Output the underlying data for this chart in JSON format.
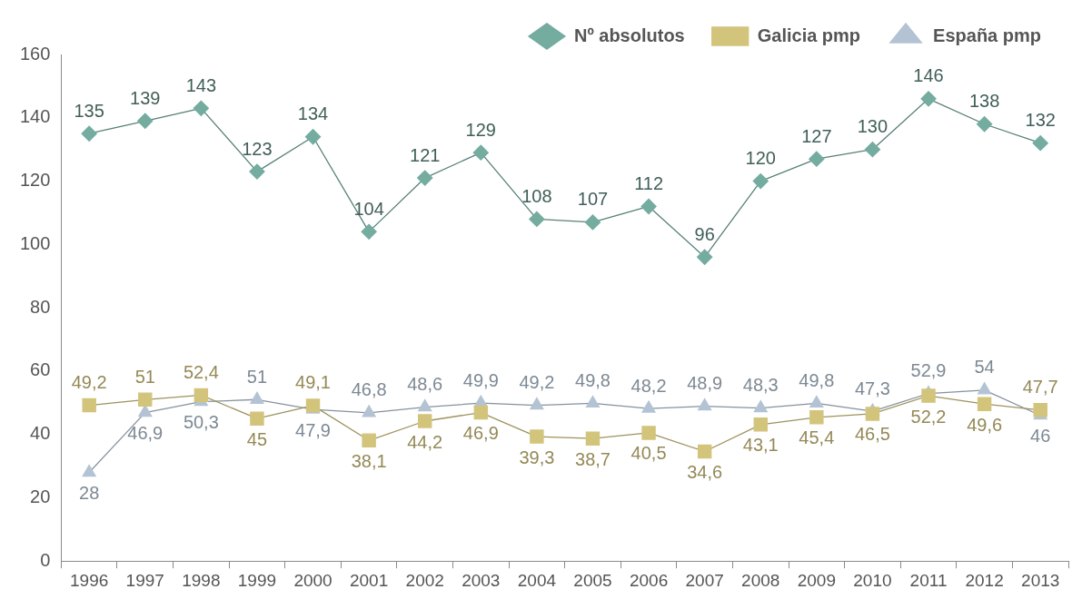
{
  "chart_data": {
    "type": "line",
    "categories": [
      "1996",
      "1997",
      "1998",
      "1999",
      "2000",
      "2001",
      "2002",
      "2003",
      "2004",
      "2005",
      "2006",
      "2007",
      "2008",
      "2009",
      "2010",
      "2011",
      "2012",
      "2013"
    ],
    "series": [
      {
        "name": "Nº absolutos",
        "color": "#74aca0",
        "marker": "diamond",
        "values": [
          135,
          139,
          143,
          123,
          134,
          104,
          121,
          129,
          108,
          107,
          112,
          96,
          120,
          127,
          130,
          146,
          138,
          132
        ]
      },
      {
        "name": "Galicia pmp",
        "color": "#d3c47c",
        "marker": "square",
        "values": [
          49.2,
          51,
          52.4,
          45,
          49.1,
          38.1,
          44.2,
          46.9,
          39.3,
          38.7,
          40.5,
          34.6,
          43.1,
          45.4,
          46.5,
          52.2,
          49.6,
          47.7
        ],
        "value_labels": [
          "49,2",
          "51",
          "52,4",
          "45",
          "49,1",
          "38,1",
          "44,2",
          "46,9",
          "39,3",
          "38,7",
          "40,5",
          "34,6",
          "43,1",
          "45,4",
          "46,5",
          "52,2",
          "49,6",
          "47,7"
        ]
      },
      {
        "name": "España pmp",
        "color": "#b3c3d3",
        "marker": "triangle",
        "values": [
          28,
          46.9,
          50.3,
          51,
          47.9,
          46.8,
          48.6,
          49.9,
          49.2,
          49.8,
          48.2,
          48.9,
          48.3,
          49.8,
          47.3,
          52.9,
          54,
          46
        ],
        "value_labels": [
          "28",
          "46,9",
          "50,3",
          "51",
          "47,9",
          "46,8",
          "48,6",
          "49,9",
          "49,2",
          "49,8",
          "48,2",
          "48,9",
          "48,3",
          "49,8",
          "47,3",
          "52,9",
          "54",
          "46"
        ]
      }
    ],
    "data_labels": true,
    "ylim": [
      0,
      160
    ],
    "yticks": [
      0,
      20,
      40,
      60,
      80,
      100,
      120,
      140,
      160
    ],
    "grid": false,
    "legend": "top right"
  }
}
